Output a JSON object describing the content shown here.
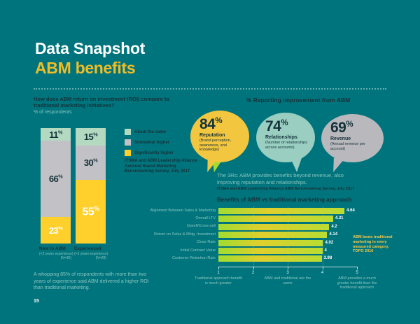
{
  "page": {
    "title_line1": "Data Snapshot",
    "title_line2": "ABM benefits",
    "page_number": "15",
    "footer_note": "A whopping 85% of respondents with more than two years of experience said ABM delivered a higher ROI than traditional marketing.",
    "background_color": "#00747C",
    "accent_yellow": "#EFBD27",
    "dark_text_color": "#15323A",
    "light_text_color": "#8AC5C0"
  },
  "roi_section": {
    "question": "How does ABM return on investment (ROI) compare to traditional marketing initiatives?",
    "subtitle": "% of respondents",
    "source": "ITSMA and ABM Leadership Alliance Account Based Marketing Benchmarking Survey, July 2017"
  },
  "improvement_section": {
    "heading": "% Reporting improvement from ABM",
    "bubbles": [
      {
        "value": 84,
        "suffix": "%",
        "label": "Reputation",
        "sub": "(Brand perception, awareness, and knowledge)",
        "color": "#F2C63F"
      },
      {
        "value": 74,
        "suffix": "%",
        "label": "Relationships",
        "sub": "(Number of relationships across accounts)",
        "color": "#99CEC1"
      },
      {
        "value": 69,
        "suffix": "%",
        "label": "Revenue",
        "sub": "(Annual revenue per account)",
        "color": "#B9B8BC"
      }
    ],
    "note": "The 3Rs: ABM provides benefits beyond revenue, also improving reputation and relationships.",
    "source": "ITSMA and ABM Leadership Alliance ABM Benchmarking Survey, July 2017"
  },
  "benefits_section": {
    "title": "Benefits of ABM vs traditional marketing approach",
    "annotation": "ABM beats traditional marketing in every measured category, TOPO 2016"
  },
  "chart_data": [
    {
      "type": "bar",
      "variant": "stacked-vertical",
      "title": "How does ABM return on investment (ROI) compare to traditional marketing initiatives?",
      "ylabel": "% of respondents",
      "unit": "%",
      "ylim": [
        0,
        100
      ],
      "legend_position": "right",
      "categories": [
        {
          "name": "New to ABM",
          "detail": "(<2 years experience)",
          "n": "(N=35)"
        },
        {
          "name": "Experienced",
          "detail": "(>2 years experience)",
          "n": "(N=28)"
        }
      ],
      "series": [
        {
          "name": "About the same",
          "color": "#B3D9C1",
          "values": [
            11,
            15
          ]
        },
        {
          "name": "Somewhat higher",
          "color": "#C2C1C5",
          "values": [
            66,
            30
          ]
        },
        {
          "name": "Significantly higher",
          "color": "#FFCF2B",
          "values": [
            23,
            55
          ]
        }
      ]
    },
    {
      "type": "bar",
      "variant": "horizontal",
      "title": "Benefits of ABM vs traditional marketing approach",
      "categories": [
        "Alignment Between Sales & Marketing",
        "Overall LTV",
        "Upsell/Cross-sell",
        "Return on Sales & Mktg. Investment",
        "Close Rate",
        "Initial Contract Value",
        "Customer Retention Rate"
      ],
      "values": [
        4.64,
        4.31,
        4.2,
        4.14,
        4.02,
        4,
        3.98
      ],
      "xlim": [
        1,
        5
      ],
      "ticks": [
        1,
        2,
        3,
        4,
        5
      ],
      "grid_ticks": [
        2,
        3,
        4
      ],
      "grid": "faint vertical lines",
      "bar_gradient": [
        "#A6DB30",
        "#E0CF2D",
        "#B9DC33"
      ],
      "value_label_color": "#FFFFFF",
      "axis_captions": [
        {
          "tick": 1,
          "text": "Traditional approach benefit is much greater"
        },
        {
          "tick": 3,
          "text": "ABM and traditional are the same"
        },
        {
          "tick": 5,
          "text": "ABM provides a much greater benefit than the traditional approach"
        }
      ]
    }
  ]
}
